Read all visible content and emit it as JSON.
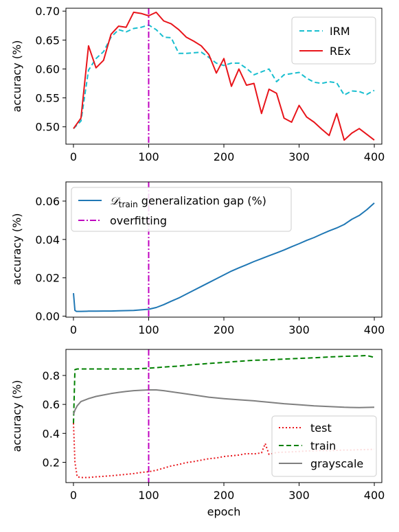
{
  "chart_data": [
    {
      "type": "line",
      "xlabel": "",
      "ylabel": "accuracy (%)",
      "xlim": [
        -10,
        410
      ],
      "ylim": [
        0.47,
        0.705
      ],
      "xticks": [
        0,
        100,
        200,
        300,
        400
      ],
      "xtick_labels": [
        "0",
        "100",
        "200",
        "300",
        "400"
      ],
      "yticks": [
        0.5,
        0.55,
        0.6,
        0.65,
        0.7
      ],
      "ytick_labels": [
        "0.50",
        "0.55",
        "0.60",
        "0.65",
        "0.70"
      ],
      "grid": false,
      "legend_position": "top-right",
      "vline": {
        "x": 100,
        "color": "#bf00bf",
        "style": "dashdot"
      },
      "series": [
        {
          "name": "IRM",
          "color": "#17becf",
          "style": "dashed",
          "x": [
            0,
            10,
            20,
            30,
            40,
            50,
            60,
            70,
            80,
            90,
            100,
            110,
            120,
            130,
            140,
            150,
            160,
            170,
            180,
            190,
            200,
            210,
            220,
            230,
            240,
            250,
            260,
            270,
            280,
            290,
            300,
            310,
            320,
            330,
            340,
            350,
            360,
            370,
            380,
            390,
            400
          ],
          "values": [
            0.497,
            0.51,
            0.598,
            0.618,
            0.63,
            0.655,
            0.668,
            0.664,
            0.67,
            0.672,
            0.676,
            0.668,
            0.655,
            0.654,
            0.627,
            0.627,
            0.628,
            0.629,
            0.62,
            0.61,
            0.606,
            0.61,
            0.61,
            0.601,
            0.59,
            0.595,
            0.6,
            0.578,
            0.59,
            0.592,
            0.594,
            0.584,
            0.577,
            0.575,
            0.578,
            0.576,
            0.555,
            0.562,
            0.561,
            0.556,
            0.563
          ]
        },
        {
          "name": "REx",
          "color": "#e8141a",
          "style": "solid",
          "x": [
            0,
            10,
            20,
            30,
            40,
            50,
            60,
            70,
            80,
            90,
            100,
            110,
            120,
            130,
            140,
            150,
            160,
            170,
            180,
            190,
            200,
            210,
            220,
            230,
            240,
            250,
            260,
            270,
            280,
            290,
            300,
            310,
            320,
            330,
            340,
            350,
            360,
            370,
            380,
            390,
            400
          ],
          "values": [
            0.497,
            0.515,
            0.64,
            0.602,
            0.615,
            0.66,
            0.674,
            0.672,
            0.698,
            0.696,
            0.692,
            0.698,
            0.683,
            0.678,
            0.668,
            0.655,
            0.648,
            0.64,
            0.625,
            0.593,
            0.618,
            0.57,
            0.6,
            0.572,
            0.575,
            0.523,
            0.565,
            0.558,
            0.515,
            0.508,
            0.537,
            0.517,
            0.508,
            0.496,
            0.485,
            0.523,
            0.477,
            0.489,
            0.497,
            0.487,
            0.477
          ]
        }
      ]
    },
    {
      "type": "line",
      "xlabel": "",
      "ylabel": "accuracy (%)",
      "xlim": [
        -10,
        410
      ],
      "ylim": [
        -0.0005,
        0.07
      ],
      "xticks": [
        0,
        100,
        200,
        300,
        400
      ],
      "xtick_labels": [
        "0",
        "100",
        "200",
        "300",
        "400"
      ],
      "yticks": [
        0.0,
        0.02,
        0.04,
        0.06
      ],
      "ytick_labels": [
        "0.00",
        "0.02",
        "0.04",
        "0.06"
      ],
      "grid": false,
      "legend_position": "top-left",
      "vline": {
        "x": 100,
        "color": "#bf00bf",
        "style": "dashdot"
      },
      "legend_entries": [
        {
          "label_math": "𝒟",
          "label_sub": "train",
          "label_rest": " generalization gap (%)",
          "color": "#1f77b4",
          "style": "solid"
        },
        {
          "label": "overfitting",
          "color": "#bf00bf",
          "style": "dashdot"
        }
      ],
      "series": [
        {
          "name_math": "𝒟",
          "name_sub": "train",
          "name_rest": " generalization gap (%)",
          "color": "#1f77b4",
          "style": "solid",
          "x": [
            0,
            2,
            4,
            10,
            20,
            30,
            40,
            50,
            60,
            70,
            80,
            90,
            100,
            110,
            120,
            130,
            140,
            150,
            160,
            170,
            180,
            190,
            200,
            210,
            220,
            230,
            240,
            250,
            260,
            270,
            280,
            290,
            300,
            310,
            320,
            330,
            340,
            350,
            360,
            370,
            380,
            390,
            400
          ],
          "values": [
            0.012,
            0.003,
            0.0025,
            0.0025,
            0.0026,
            0.0026,
            0.0027,
            0.0027,
            0.0028,
            0.0029,
            0.003,
            0.0033,
            0.0036,
            0.0045,
            0.006,
            0.0078,
            0.0095,
            0.0115,
            0.0135,
            0.0155,
            0.0175,
            0.0195,
            0.0215,
            0.0235,
            0.0252,
            0.0268,
            0.0285,
            0.03,
            0.0315,
            0.033,
            0.0345,
            0.0362,
            0.0378,
            0.0395,
            0.041,
            0.0428,
            0.0445,
            0.046,
            0.0478,
            0.0505,
            0.0525,
            0.0555,
            0.059
          ]
        }
      ]
    },
    {
      "type": "line",
      "xlabel": "epoch",
      "ylabel": "accuracy (%)",
      "xlim": [
        -10,
        410
      ],
      "ylim": [
        0.06,
        0.98
      ],
      "xticks": [
        0,
        100,
        200,
        300,
        400
      ],
      "xtick_labels": [
        "0",
        "100",
        "200",
        "300",
        "400"
      ],
      "yticks": [
        0.2,
        0.4,
        0.6,
        0.8
      ],
      "ytick_labels": [
        "0.2",
        "0.4",
        "0.6",
        "0.8"
      ],
      "grid": false,
      "legend_position": "bottom-right",
      "vline": {
        "x": 100,
        "color": "#bf00bf",
        "style": "dashdot"
      },
      "series": [
        {
          "name": "test",
          "color": "#e8141a",
          "style": "dotted",
          "x": [
            0,
            2,
            5,
            10,
            20,
            30,
            40,
            50,
            60,
            70,
            80,
            90,
            100,
            110,
            120,
            130,
            140,
            150,
            160,
            170,
            180,
            190,
            200,
            210,
            220,
            230,
            240,
            250,
            255,
            260,
            270,
            280,
            290,
            300,
            310,
            320,
            330,
            340,
            350,
            360,
            370,
            380,
            390,
            400
          ],
          "values": [
            0.47,
            0.2,
            0.1,
            0.095,
            0.095,
            0.1,
            0.103,
            0.107,
            0.112,
            0.117,
            0.122,
            0.13,
            0.135,
            0.145,
            0.16,
            0.175,
            0.185,
            0.198,
            0.205,
            0.215,
            0.225,
            0.23,
            0.24,
            0.245,
            0.25,
            0.26,
            0.258,
            0.265,
            0.33,
            0.255,
            0.268,
            0.27,
            0.272,
            0.275,
            0.278,
            0.28,
            0.282,
            0.28,
            0.283,
            0.285,
            0.285,
            0.287,
            0.288,
            0.29
          ]
        },
        {
          "name": "train",
          "color": "#008000",
          "style": "dashed",
          "x": [
            0,
            2,
            5,
            10,
            20,
            40,
            60,
            80,
            100,
            120,
            140,
            160,
            180,
            200,
            220,
            240,
            260,
            280,
            300,
            320,
            340,
            360,
            380,
            390,
            400
          ],
          "values": [
            0.47,
            0.84,
            0.845,
            0.845,
            0.845,
            0.845,
            0.845,
            0.845,
            0.85,
            0.858,
            0.865,
            0.875,
            0.883,
            0.89,
            0.898,
            0.905,
            0.908,
            0.913,
            0.918,
            0.922,
            0.928,
            0.932,
            0.935,
            0.938,
            0.925
          ]
        },
        {
          "name": "grayscale",
          "color": "#7f7f7f",
          "style": "solid",
          "x": [
            0,
            2,
            5,
            10,
            20,
            30,
            40,
            50,
            60,
            70,
            80,
            90,
            100,
            110,
            120,
            140,
            160,
            180,
            200,
            220,
            240,
            260,
            280,
            300,
            320,
            340,
            360,
            380,
            400
          ],
          "values": [
            0.53,
            0.56,
            0.59,
            0.62,
            0.64,
            0.655,
            0.665,
            0.675,
            0.683,
            0.69,
            0.695,
            0.698,
            0.7,
            0.7,
            0.695,
            0.68,
            0.665,
            0.65,
            0.64,
            0.632,
            0.625,
            0.615,
            0.605,
            0.598,
            0.59,
            0.585,
            0.58,
            0.578,
            0.58
          ]
        }
      ]
    }
  ]
}
